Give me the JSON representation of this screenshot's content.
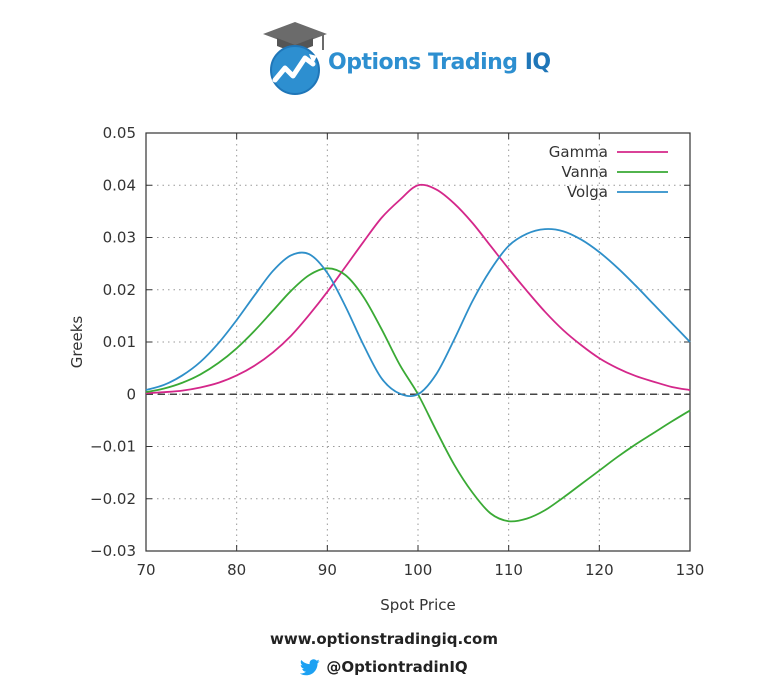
{
  "brand": {
    "name_part1": "Options Trading ",
    "name_part2": "IQ",
    "website": "www.optionstradingiq.com",
    "twitter_handle": "@OptiontradinIQ",
    "colors": {
      "blue": "#2d8fd0",
      "cap": "#6b6b6b",
      "text": "#222222"
    }
  },
  "chart_data": {
    "type": "line",
    "title": "",
    "xlabel": "Spot Price",
    "ylabel": "Greeks",
    "xlim": [
      70,
      130
    ],
    "ylim": [
      -0.03,
      0.05
    ],
    "xticks": [
      70,
      80,
      90,
      100,
      110,
      120,
      130
    ],
    "yticks": [
      -0.03,
      -0.02,
      -0.01,
      0,
      0.01,
      0.02,
      0.03,
      0.04,
      0.05
    ],
    "ytick_labels": [
      "−0.03",
      "−0.02",
      "−0.01",
      "0",
      "0.01",
      "0.02",
      "0.03",
      "0.04",
      "0.05"
    ],
    "grid": true,
    "legend_position": "top-right",
    "zero_line": true,
    "series": [
      {
        "name": "Gamma",
        "color": "#d4278a",
        "x": [
          70,
          72,
          74,
          76,
          78,
          80,
          82,
          84,
          86,
          88,
          90,
          92,
          94,
          96,
          98,
          100,
          102,
          104,
          106,
          108,
          110,
          112,
          114,
          116,
          118,
          120,
          122,
          124,
          126,
          128,
          130
        ],
        "y": [
          0.0002,
          0.0004,
          0.0007,
          0.0013,
          0.0022,
          0.0036,
          0.0055,
          0.008,
          0.0112,
          0.0152,
          0.0196,
          0.0244,
          0.0292,
          0.0338,
          0.0372,
          0.04,
          0.0392,
          0.0365,
          0.0328,
          0.0284,
          0.024,
          0.0198,
          0.0158,
          0.0123,
          0.0094,
          0.0069,
          0.005,
          0.0035,
          0.0024,
          0.0014,
          0.0008
        ]
      },
      {
        "name": "Vanna",
        "color": "#3aaa35",
        "x": [
          70,
          72,
          74,
          76,
          78,
          80,
          82,
          84,
          86,
          88,
          90,
          92,
          94,
          96,
          98,
          100,
          102,
          104,
          106,
          108,
          110,
          112,
          114,
          116,
          118,
          120,
          122,
          124,
          126,
          128,
          130
        ],
        "y": [
          0.0004,
          0.0011,
          0.0022,
          0.0038,
          0.006,
          0.0088,
          0.0122,
          0.016,
          0.0198,
          0.0228,
          0.0241,
          0.0228,
          0.0186,
          0.0124,
          0.0056,
          0.0,
          -0.0069,
          -0.0135,
          -0.0188,
          -0.0228,
          -0.0243,
          -0.0238,
          -0.0222,
          -0.0198,
          -0.0172,
          -0.0146,
          -0.012,
          -0.0096,
          -0.0074,
          -0.0052,
          -0.0031
        ]
      },
      {
        "name": "Volga",
        "color": "#2e8fc9",
        "x": [
          70,
          72,
          74,
          76,
          78,
          80,
          82,
          84,
          86,
          88,
          90,
          92,
          94,
          96,
          98,
          100,
          102,
          104,
          106,
          108,
          110,
          112,
          114,
          116,
          118,
          120,
          122,
          124,
          126,
          128,
          130
        ],
        "y": [
          0.0008,
          0.0018,
          0.0036,
          0.0062,
          0.0098,
          0.0142,
          0.019,
          0.0236,
          0.0266,
          0.0268,
          0.0232,
          0.0168,
          0.0094,
          0.003,
          0.0001,
          0.0,
          0.0038,
          0.0105,
          0.0178,
          0.0238,
          0.0284,
          0.0307,
          0.0316,
          0.0312,
          0.0296,
          0.0272,
          0.0242,
          0.0208,
          0.0172,
          0.0136,
          0.01
        ]
      }
    ]
  }
}
